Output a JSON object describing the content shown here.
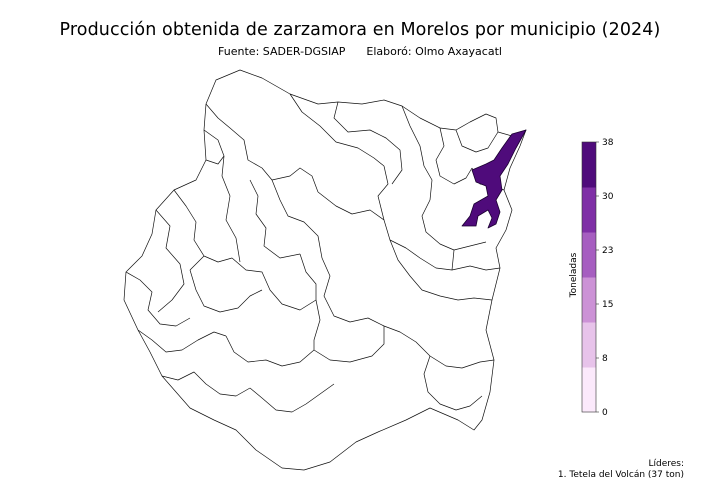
{
  "title": "Producción obtenida de zarzamora en Morelos por municipio (2024)",
  "subtitle": "Fuente: SADER-DGSIAP      Elaboró: Olmo Axayacatl",
  "legend": {
    "label": "Toneladas",
    "ticks": [
      "0",
      "8",
      "15",
      "23",
      "30",
      "38"
    ],
    "colors": [
      "#fbe9fb",
      "#e7c3ea",
      "#cc92d6",
      "#a65ec0",
      "#7f2fa6",
      "#4f0b7b"
    ]
  },
  "highlight_color": "#4f0b7b",
  "leaders": {
    "heading": "Líderes:",
    "items": [
      "1. Tetela del Volcán (37 ton)"
    ]
  }
}
